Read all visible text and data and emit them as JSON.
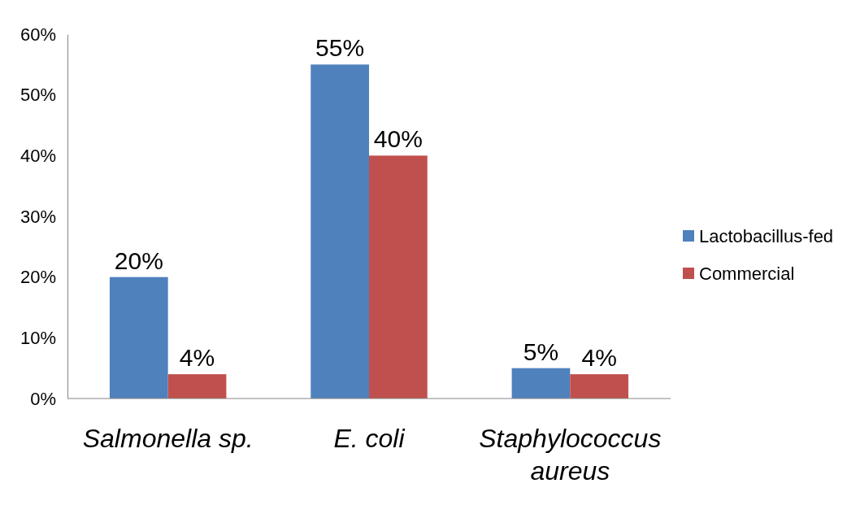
{
  "chart_data": {
    "type": "bar",
    "categories": [
      "Salmonella sp.",
      "E. coli",
      "Staphylococcus aureus"
    ],
    "series": [
      {
        "name": "Lactobacillus-fed",
        "color": "#4f81bd",
        "values": [
          20,
          55,
          5
        ],
        "value_labels": [
          "20%",
          "55%",
          "5%"
        ]
      },
      {
        "name": "Commercial",
        "color": "#c0504d",
        "values": [
          4,
          40,
          4
        ],
        "value_labels": [
          "4%",
          "40%",
          "4%"
        ]
      }
    ],
    "ylim": [
      0,
      60
    ],
    "yticks": [
      {
        "value": 0,
        "label": "0%"
      },
      {
        "value": 10,
        "label": "10%"
      },
      {
        "value": 20,
        "label": "20%"
      },
      {
        "value": 30,
        "label": "30%"
      },
      {
        "value": 40,
        "label": "40%"
      },
      {
        "value": 50,
        "label": "50%"
      },
      {
        "value": 60,
        "label": "60%"
      }
    ],
    "grid": false,
    "legend": "right"
  }
}
